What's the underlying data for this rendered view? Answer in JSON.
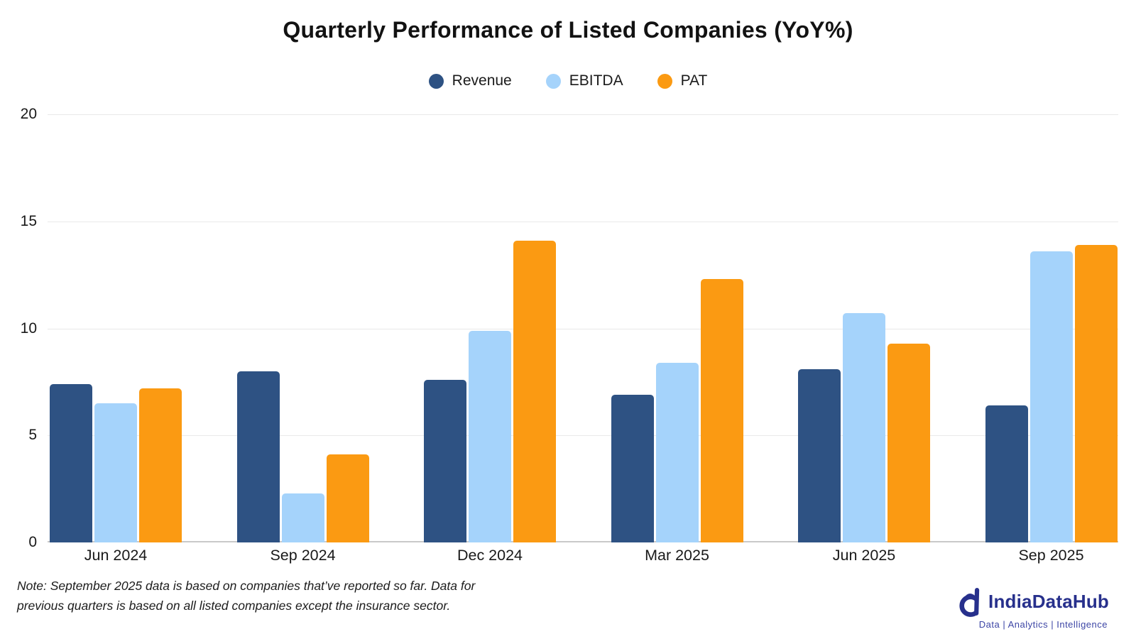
{
  "title": "Quarterly Performance of Listed Companies (YoY%)",
  "chart_data": {
    "type": "bar",
    "categories": [
      "Jun 2024",
      "Sep 2024",
      "Dec 2024",
      "Mar 2025",
      "Jun 2025",
      "Sep 2025"
    ],
    "series": [
      {
        "name": "Revenue",
        "color": "#2E5283",
        "values": [
          7.4,
          8.0,
          7.6,
          6.9,
          8.1,
          6.4
        ]
      },
      {
        "name": "EBITDA",
        "color": "#A5D3FB",
        "values": [
          6.5,
          2.3,
          9.9,
          8.4,
          10.7,
          13.6
        ]
      },
      {
        "name": "PAT",
        "color": "#FB9A12",
        "values": [
          7.2,
          4.1,
          14.1,
          12.3,
          9.3,
          13.9
        ]
      }
    ],
    "ylim": [
      0,
      20
    ],
    "yticks": [
      0,
      5,
      10,
      15,
      20
    ],
    "grid": true,
    "legend_position": "top-center",
    "xlabel": "",
    "ylabel": ""
  },
  "note": {
    "line1": "Note: September 2025 data is based on companies that’ve reported so far. Data for",
    "line2": "previous quarters is based on all listed companies except the insurance sector."
  },
  "branding": {
    "name": "IndiaDataHub",
    "tagline": "Data | Analytics | Intelligence"
  }
}
